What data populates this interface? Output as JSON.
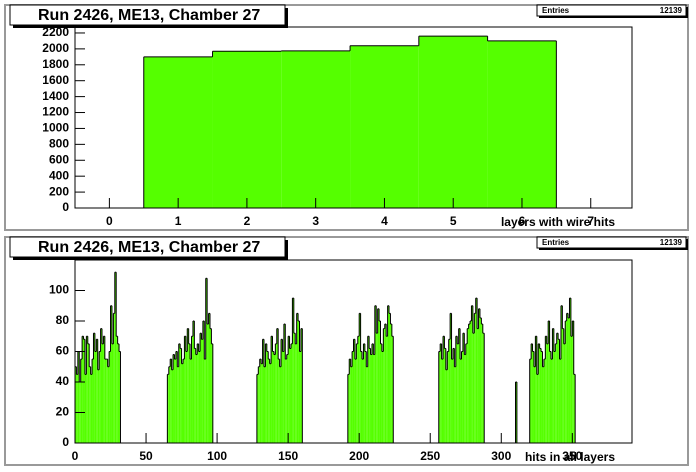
{
  "chart_data": [
    {
      "type": "histogram",
      "title": "Run 2426, ME13, Chamber 27",
      "stats": {
        "label": "Entries",
        "value": 12139
      },
      "x_label": "layers with wire hits",
      "color": "#55ff00",
      "bins": [
        0.5,
        1.5,
        2.5,
        3.5,
        4.5,
        5.5,
        6.5
      ],
      "values": [
        1900,
        1970,
        1975,
        2040,
        2160,
        2100
      ],
      "xlim": [
        -0.5,
        7.6
      ],
      "xticks": [
        0,
        1,
        2,
        3,
        4,
        5,
        6,
        7
      ],
      "ylim": [
        0,
        2275
      ],
      "yticks": [
        0,
        200,
        400,
        600,
        800,
        1000,
        1200,
        1400,
        1600,
        1800,
        2000,
        2200
      ]
    },
    {
      "type": "histogram",
      "title": "Run 2426, ME13, Chamber 27",
      "stats": {
        "label": "Entries",
        "value": 12139
      },
      "x_label": "hits in all layers",
      "color": "#55ff00",
      "bins": [
        0,
        1,
        2,
        3,
        4,
        5,
        6,
        7,
        8,
        9,
        10,
        11,
        12,
        13,
        14,
        15,
        16,
        17,
        18,
        19,
        20,
        21,
        22,
        23,
        24,
        25,
        26,
        27,
        28,
        29,
        30,
        31,
        32,
        33,
        34,
        35,
        36,
        37,
        38,
        39,
        40,
        41,
        42,
        43,
        44,
        45,
        46,
        47,
        48,
        49,
        50,
        51,
        52,
        53,
        54,
        55,
        56,
        57,
        58,
        59,
        60,
        61,
        62,
        63,
        64,
        65,
        66,
        67,
        68,
        69,
        70,
        71,
        72,
        73,
        74,
        75,
        76,
        77,
        78,
        79,
        80,
        81,
        82,
        83,
        84,
        85,
        86,
        87,
        88,
        89,
        90,
        91,
        92,
        93,
        94,
        95,
        96,
        97,
        98,
        99,
        100,
        101,
        102,
        103,
        104,
        105,
        106,
        107,
        108,
        109,
        110,
        111,
        112,
        113,
        114,
        115,
        116,
        117,
        118,
        119,
        120,
        121,
        122,
        123,
        124,
        125,
        126,
        127,
        128,
        129,
        130,
        131,
        132,
        133,
        134,
        135,
        136,
        137,
        138,
        139,
        140,
        141,
        142,
        143,
        144,
        145,
        146,
        147,
        148,
        149,
        150,
        151,
        152,
        153,
        154,
        155,
        156,
        157,
        158,
        159,
        160,
        161,
        162,
        163,
        164,
        165,
        166,
        167,
        168,
        169,
        170,
        171,
        172,
        173,
        174,
        175,
        176,
        177,
        178,
        179,
        180,
        181,
        182,
        183,
        184,
        185,
        186,
        187,
        188,
        189,
        190,
        191,
        192,
        193,
        194,
        195,
        196,
        197,
        198,
        199,
        200,
        201,
        202,
        203,
        204,
        205,
        206,
        207,
        208,
        209,
        210,
        211,
        212,
        213,
        214,
        215,
        216,
        217,
        218,
        219,
        220,
        221,
        222,
        223,
        224,
        225,
        226,
        227,
        228,
        229,
        230,
        231,
        232,
        233,
        234,
        235,
        236,
        237,
        238,
        239,
        240,
        241,
        242,
        243,
        244,
        245,
        246,
        247,
        248,
        249,
        250,
        251,
        252,
        253,
        254,
        255,
        256,
        257,
        258,
        259,
        260,
        261,
        262,
        263,
        264,
        265,
        266,
        267,
        268,
        269,
        270,
        271,
        272,
        273,
        274,
        275,
        276,
        277,
        278,
        279,
        280,
        281,
        282,
        283,
        284,
        285,
        286,
        287,
        288,
        289,
        290,
        291,
        292,
        293,
        294,
        295,
        296,
        297,
        298,
        299,
        300,
        301,
        302,
        303,
        304,
        305,
        306,
        307,
        308,
        309,
        310,
        311,
        312,
        313,
        314,
        315,
        316,
        317,
        318,
        319,
        320,
        321,
        322,
        323,
        324,
        325,
        326,
        327,
        328,
        329,
        330,
        331,
        332,
        333,
        334,
        335,
        336,
        337,
        338,
        339,
        340,
        341,
        342,
        343,
        344,
        345,
        346,
        347,
        348,
        349,
        350,
        351,
        352
      ],
      "values": [
        50,
        45,
        60,
        40,
        55,
        70,
        68,
        45,
        70,
        65,
        50,
        45,
        55,
        72,
        60,
        68,
        48,
        60,
        75,
        65,
        70,
        55,
        55,
        50,
        60,
        90,
        65,
        85,
        112,
        70,
        65,
        60,
        0,
        0,
        0,
        0,
        0,
        0,
        0,
        0,
        0,
        0,
        0,
        0,
        0,
        0,
        0,
        0,
        0,
        0,
        0,
        0,
        0,
        0,
        0,
        0,
        0,
        0,
        0,
        0,
        0,
        0,
        0,
        0,
        0,
        45,
        50,
        55,
        48,
        58,
        55,
        60,
        50,
        65,
        62,
        52,
        55,
        70,
        60,
        75,
        65,
        55,
        70,
        80,
        62,
        58,
        65,
        60,
        72,
        68,
        80,
        55,
        108,
        78,
        85,
        75,
        65,
        0,
        0,
        0,
        0,
        0,
        0,
        0,
        0,
        0,
        0,
        0,
        0,
        0,
        0,
        0,
        0,
        0,
        0,
        0,
        0,
        0,
        0,
        0,
        0,
        0,
        0,
        0,
        0,
        0,
        0,
        0,
        45,
        50,
        55,
        52,
        68,
        50,
        65,
        60,
        55,
        52,
        70,
        60,
        58,
        65,
        75,
        55,
        50,
        68,
        60,
        78,
        55,
        58,
        70,
        62,
        65,
        95,
        72,
        65,
        85,
        80,
        60,
        75,
        0,
        0,
        0,
        0,
        0,
        0,
        0,
        0,
        0,
        0,
        0,
        0,
        0,
        0,
        0,
        0,
        0,
        0,
        0,
        0,
        0,
        0,
        0,
        0,
        0,
        0,
        0,
        0,
        0,
        0,
        0,
        0,
        45,
        55,
        50,
        60,
        68,
        55,
        65,
        70,
        85,
        60,
        55,
        65,
        60,
        50,
        70,
        62,
        58,
        65,
        58,
        90,
        72,
        88,
        80,
        65,
        60,
        75,
        78,
        70,
        90,
        85,
        78,
        70,
        0,
        0,
        0,
        0,
        0,
        0,
        0,
        0,
        0,
        0,
        0,
        0,
        0,
        0,
        0,
        0,
        0,
        0,
        0,
        0,
        0,
        0,
        0,
        0,
        0,
        0,
        0,
        0,
        0,
        0,
        0,
        0,
        60,
        65,
        55,
        70,
        62,
        48,
        60,
        68,
        85,
        55,
        62,
        50,
        70,
        65,
        75,
        55,
        60,
        72,
        58,
        65,
        75,
        78,
        80,
        90,
        72,
        85,
        95,
        75,
        88,
        82,
        78,
        72,
        0,
        0,
        0,
        0,
        0,
        0,
        0,
        0,
        0,
        0,
        0,
        0,
        0,
        0,
        0,
        0,
        0,
        0,
        0,
        0,
        0,
        0,
        40,
        0,
        0,
        0,
        0,
        0,
        0,
        0,
        0,
        0,
        55,
        65,
        60,
        50,
        70,
        45,
        65,
        62,
        60,
        50,
        55,
        70,
        65,
        80,
        60,
        55,
        75,
        60,
        65,
        72,
        68,
        55,
        90,
        75,
        65,
        80,
        85,
        82,
        95,
        70,
        80,
        45
      ],
      "xlim": [
        0,
        392
      ],
      "xticks": [
        0,
        50,
        100,
        150,
        200,
        250,
        300,
        350
      ],
      "ylim": [
        0,
        120
      ],
      "yticks": [
        0,
        20,
        40,
        60,
        80,
        100
      ]
    }
  ]
}
